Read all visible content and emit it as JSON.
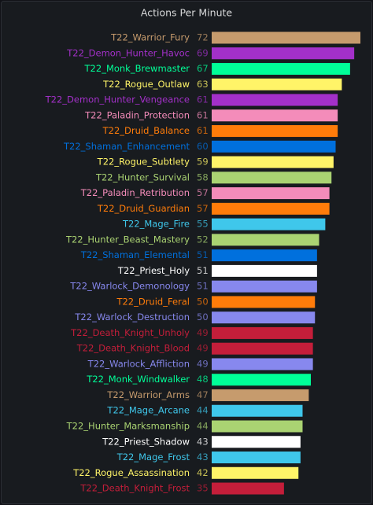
{
  "chart_data": {
    "type": "bar",
    "orientation": "horizontal",
    "title": "Actions Per Minute",
    "categories": [
      "T22_Warrior_Fury",
      "T22_Demon_Hunter_Havoc",
      "T22_Monk_Brewmaster",
      "T22_Rogue_Outlaw",
      "T22_Demon_Hunter_Vengeance",
      "T22_Paladin_Protection",
      "T22_Druid_Balance",
      "T22_Shaman_Enhancement",
      "T22_Rogue_Subtlety",
      "T22_Hunter_Survival",
      "T22_Paladin_Retribution",
      "T22_Druid_Guardian",
      "T22_Mage_Fire",
      "T22_Hunter_Beast_Mastery",
      "T22_Shaman_Elemental",
      "T22_Priest_Holy",
      "T22_Warlock_Demonology",
      "T22_Druid_Feral",
      "T22_Warlock_Destruction",
      "T22_Death_Knight_Unholy",
      "T22_Death_Knight_Blood",
      "T22_Warlock_Affliction",
      "T22_Monk_Windwalker",
      "T22_Warrior_Arms",
      "T22_Mage_Arcane",
      "T22_Hunter_Marksmanship",
      "T22_Priest_Shadow",
      "T22_Mage_Frost",
      "T22_Rogue_Assassination",
      "T22_Death_Knight_Frost"
    ],
    "values": [
      72,
      69,
      67,
      63,
      61,
      61,
      61,
      60,
      59,
      58,
      57,
      57,
      55,
      52,
      51,
      51,
      51,
      50,
      50,
      49,
      49,
      49,
      48,
      47,
      44,
      44,
      43,
      43,
      42,
      35
    ],
    "colors": [
      "#c69b6d",
      "#a330c9",
      "#00ff98",
      "#fff468",
      "#a330c9",
      "#f48cba",
      "#ff7c0a",
      "#0070dd",
      "#fff468",
      "#aad372",
      "#f48cba",
      "#ff7c0a",
      "#3fc7eb",
      "#aad372",
      "#0070dd",
      "#ffffff",
      "#8788ee",
      "#ff7c0a",
      "#8788ee",
      "#c41e3a",
      "#c41e3a",
      "#8788ee",
      "#00ff98",
      "#c69b6d",
      "#3fc7eb",
      "#aad372",
      "#ffffff",
      "#3fc7eb",
      "#fff468",
      "#c41e3a"
    ]
  }
}
